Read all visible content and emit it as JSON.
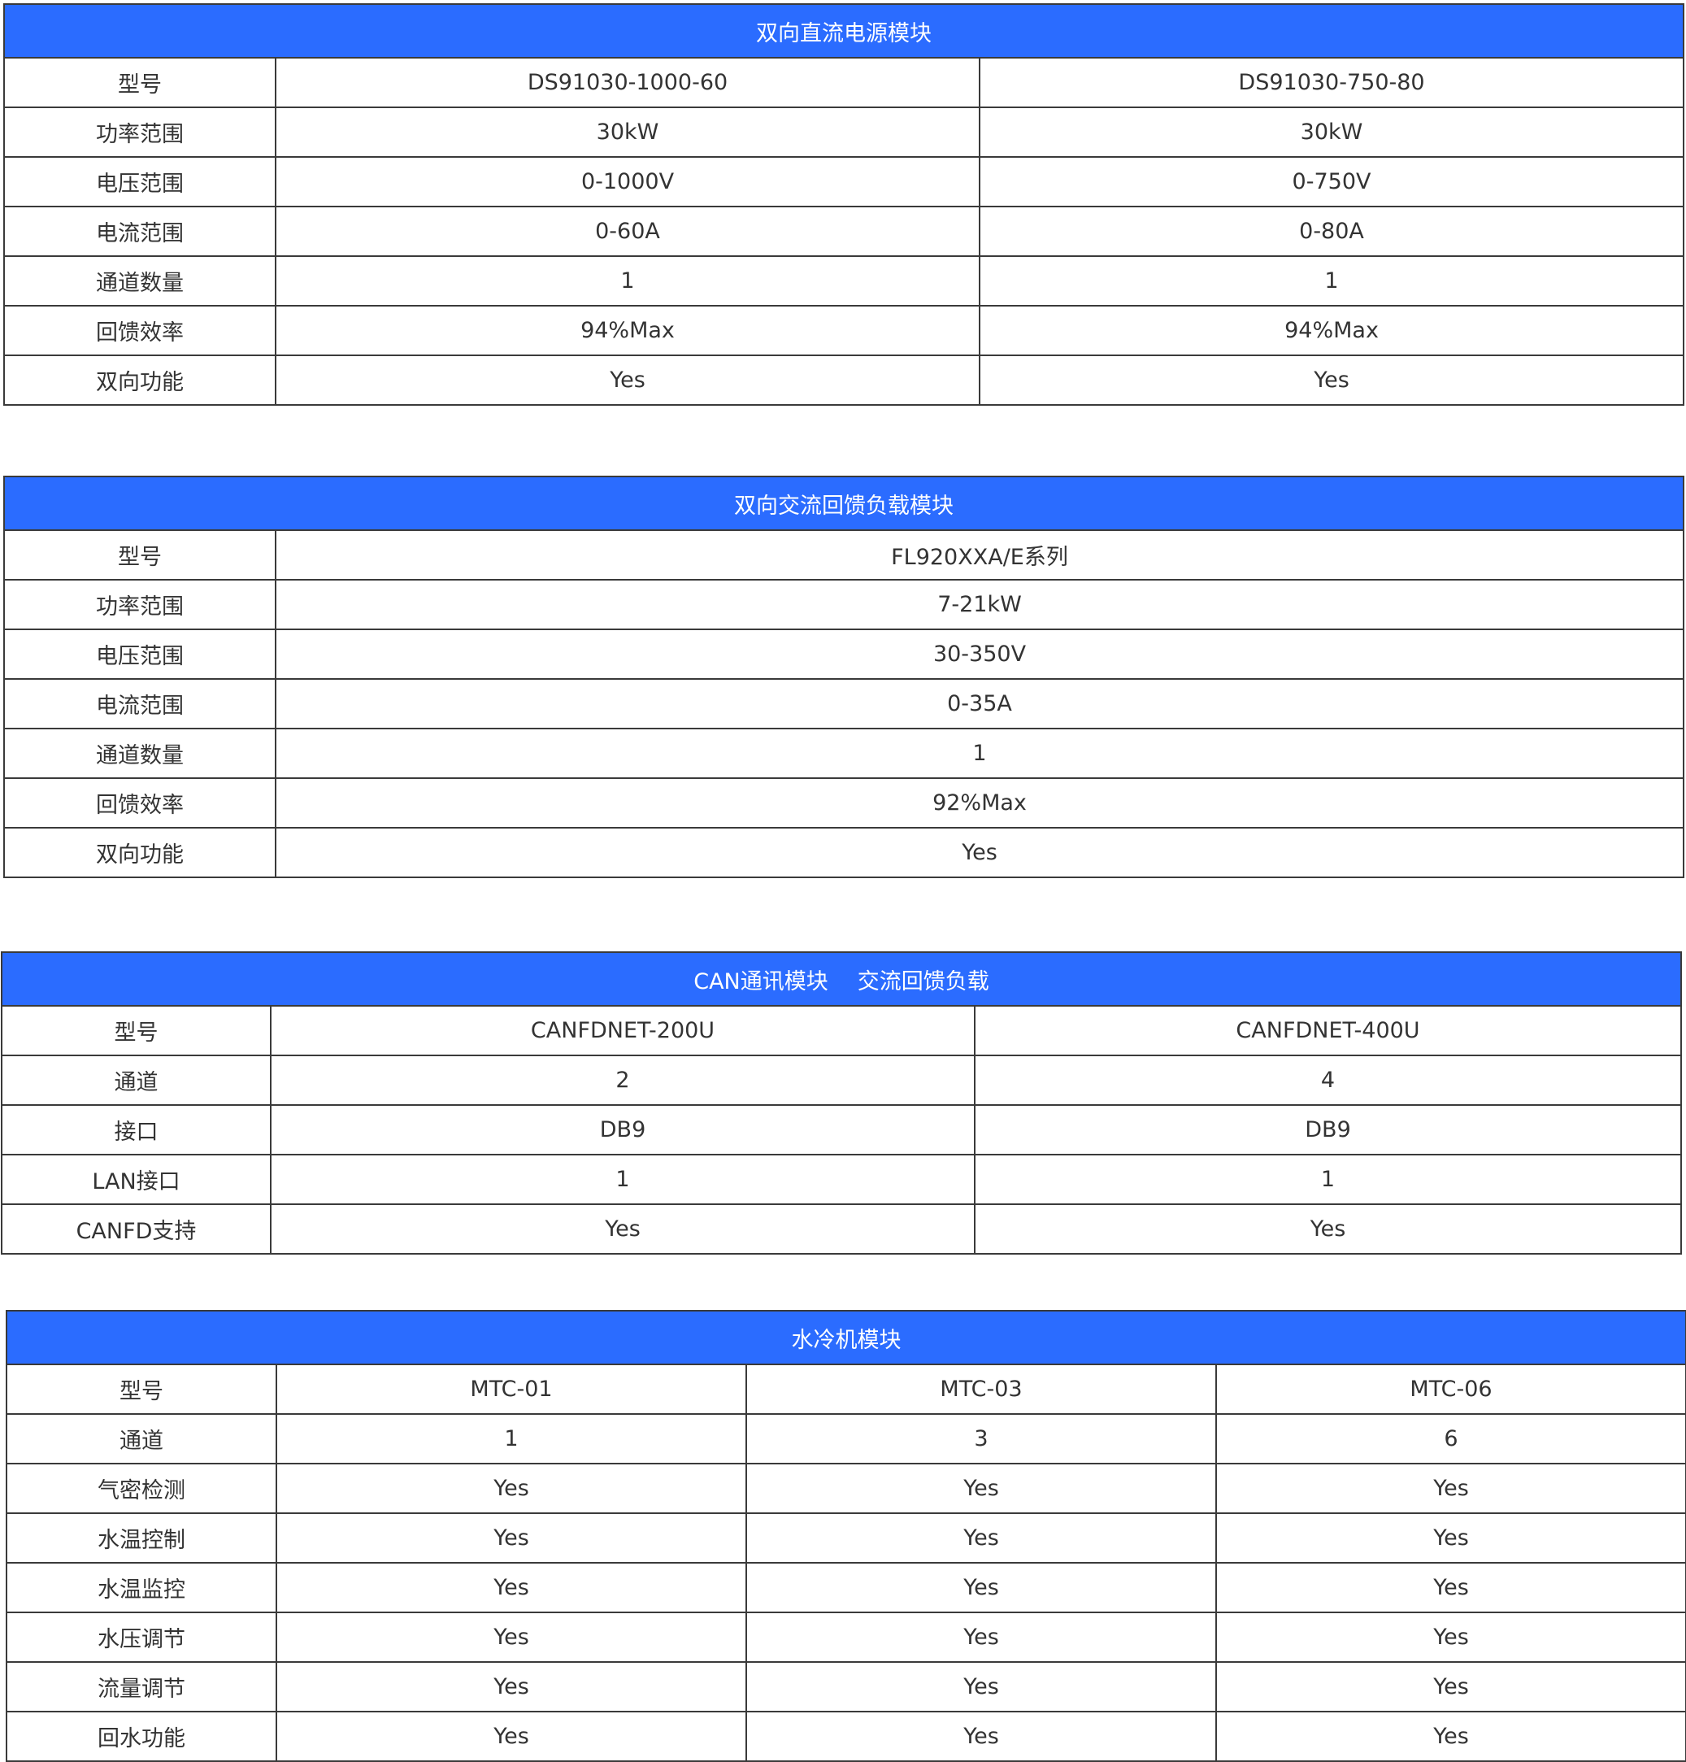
{
  "tables": [
    {
      "title": "双向直流电源模块",
      "rows": [
        [
          "型号",
          "DS91030-1000-60",
          "DS91030-750-80"
        ],
        [
          "功率范围",
          "30kW",
          "30kW"
        ],
        [
          "电压范围",
          "0-1000V",
          "0-750V"
        ],
        [
          "电流范围",
          "0-60A",
          "0-80A"
        ],
        [
          "通道数量",
          "1",
          "1"
        ],
        [
          "回馈效率",
          "94%Max",
          "94%Max"
        ],
        [
          "双向功能",
          "Yes",
          "Yes"
        ]
      ]
    },
    {
      "title": "双向交流回馈负载模块",
      "rows": [
        [
          "型号",
          "FL920XXA/E系列"
        ],
        [
          "功率范围",
          "7-21kW"
        ],
        [
          "电压范围",
          "30-350V"
        ],
        [
          "电流范围",
          "0-35A"
        ],
        [
          "通道数量",
          "1"
        ],
        [
          "回馈效率",
          "92%Max"
        ],
        [
          "双向功能",
          "Yes"
        ]
      ]
    },
    {
      "title": "CAN通讯模块",
      "title_overlay": "交流回馈负载",
      "rows": [
        [
          "型号",
          "CANFDNET-200U",
          "CANFDNET-400U"
        ],
        [
          "通道",
          "2",
          "4"
        ],
        [
          "接口",
          "DB9",
          "DB9"
        ],
        [
          "LAN接口",
          "1",
          "1"
        ],
        [
          "CANFD支持",
          "Yes",
          "Yes"
        ]
      ]
    },
    {
      "title": "水冷机模块",
      "rows": [
        [
          "型号",
          "MTC-01",
          "MTC-03",
          "MTC-06"
        ],
        [
          "通道",
          "1",
          "3",
          "6"
        ],
        [
          "气密检测",
          "Yes",
          "Yes",
          "Yes"
        ],
        [
          "水温控制",
          "Yes",
          "Yes",
          "Yes"
        ],
        [
          "水温监控",
          "Yes",
          "Yes",
          "Yes"
        ],
        [
          "水压调节",
          "Yes",
          "Yes",
          "Yes"
        ],
        [
          "流量调节",
          "Yes",
          "Yes",
          "Yes"
        ],
        [
          "回水功能",
          "Yes",
          "Yes",
          "Yes"
        ]
      ]
    }
  ],
  "colors": {
    "header_bg": "#2b6cff",
    "header_text": "#ffffff",
    "text": "#333333",
    "border": "#3a3a3a"
  }
}
